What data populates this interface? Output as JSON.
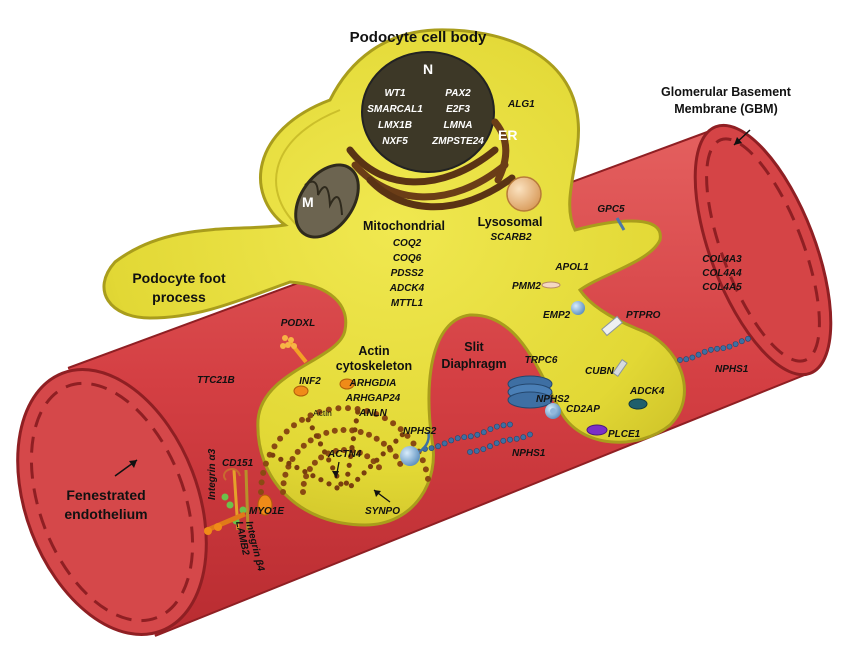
{
  "labels": {
    "cell_body": "Podocyte cell body",
    "gbm_line1": "Glomerular Basement",
    "gbm_line2": "Membrane (GBM)",
    "foot_line1": "Podocyte foot",
    "foot_line2": "process",
    "mito_title": "Mitochondrial",
    "lysosomal": "Lysosomal",
    "actin_line1": "Actin",
    "actin_line2": "cytoskeleton",
    "slit_line1": "Slit",
    "slit_line2": "Diaphragm",
    "fen_line1": "Fenestrated",
    "fen_line2": "endothelium",
    "nucleus": "N",
    "er": "ER",
    "mito_letter": "M",
    "actin_small": "Actin"
  },
  "nucleus_genes_left": [
    "WT1",
    "SMARCAL1",
    "LMX1B",
    "NXF5"
  ],
  "nucleus_genes_right": [
    "PAX2",
    "E2F3",
    "LMNA",
    "ZMPSTE24"
  ],
  "mito_genes": [
    "COQ2",
    "COQ6",
    "PDSS2",
    "ADCK4",
    "MTTL1"
  ],
  "actin_genes": [
    "ARHGDIA",
    "ARHGAP24",
    "ANLN"
  ],
  "gbm_genes": [
    "COL4A3",
    "COL4A4",
    "COL4A5"
  ],
  "genes": {
    "alg1": "ALG1",
    "scarb2": "SCARB2",
    "gpc5": "GPC5",
    "apol1": "APOL1",
    "pmm2": "PMM2",
    "emp2": "EMP2",
    "ptpro": "PTPRO",
    "podxl": "PODXL",
    "ttc21b": "TTC21B",
    "inf2": "INF2",
    "trpc6": "TRPC6",
    "cubn": "CUBN",
    "nphs1_right": "NPHS1",
    "nphs2_right": "NPHS2",
    "cd2ap": "CD2AP",
    "adck4": "ADCK4",
    "plce1": "PLCE1",
    "nphs2_left": "NPHS2",
    "nphs1_mid": "NPHS1",
    "actn4": "ACTN4",
    "cd151": "CD151",
    "itga3": "Integrin α3",
    "itgb4": "Integrin β4",
    "lamb2": "LAMB2",
    "myo1e": "MYO1E",
    "synpo": "SYNPO"
  },
  "colors": {
    "vessel": "#d9474b",
    "vessel_dark": "#a8282c",
    "cytoplasm": "#e6dd3c",
    "cell_border": "#a99d1c",
    "nucleus": "#3d3827",
    "er": "#5a3314",
    "actin": "#8a4a12"
  }
}
